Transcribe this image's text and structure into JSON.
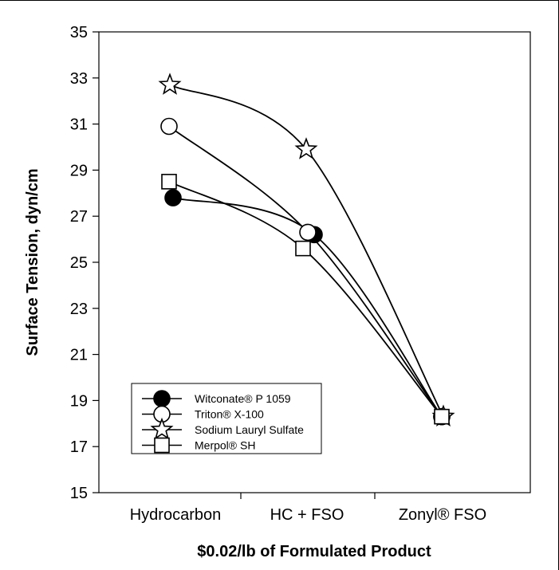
{
  "chart_data": {
    "type": "line",
    "xlabel": "$0.02/lb of Formulated Product",
    "ylabel": "Surface Tension, dyn/cm",
    "ylim": [
      15,
      35
    ],
    "yticks": [
      15,
      17,
      19,
      21,
      23,
      25,
      27,
      29,
      31,
      33,
      35
    ],
    "categories": [
      "Hydrocarbon",
      "HC + FSO",
      "Zonyl® FSO"
    ],
    "grid": false,
    "legend_position": "bottom-left",
    "series": [
      {
        "name": "Witconate® P 1059",
        "marker": "filled-circle",
        "values": [
          27.8,
          26.2,
          18.3
        ]
      },
      {
        "name": "Triton® X-100",
        "marker": "open-circle",
        "values": [
          30.9,
          26.3,
          18.3
        ]
      },
      {
        "name": "Sodium Lauryl Sulfate",
        "marker": "star",
        "values": [
          32.7,
          29.9,
          18.3
        ]
      },
      {
        "name": "Merpol® SH",
        "marker": "open-square",
        "values": [
          28.5,
          25.6,
          18.3
        ]
      }
    ]
  }
}
